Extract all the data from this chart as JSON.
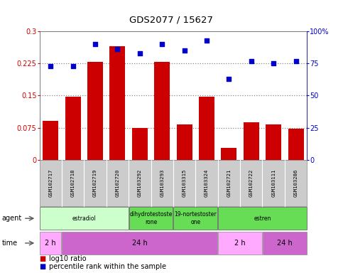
{
  "title": "GDS2077 / 15627",
  "samples": [
    "GSM102717",
    "GSM102718",
    "GSM102719",
    "GSM102720",
    "GSM103292",
    "GSM103293",
    "GSM103315",
    "GSM103324",
    "GSM102721",
    "GSM102722",
    "GSM103111",
    "GSM103286"
  ],
  "log10_ratio": [
    0.09,
    0.148,
    0.228,
    0.265,
    0.075,
    0.228,
    0.082,
    0.147,
    0.028,
    0.088,
    0.082,
    0.072
  ],
  "percentile_rank": [
    73,
    73,
    90,
    86,
    83,
    90,
    85,
    93,
    63,
    77,
    75,
    77
  ],
  "bar_color": "#cc0000",
  "dot_color": "#0000cc",
  "ylim_left": [
    0,
    0.3
  ],
  "ylim_right": [
    0,
    100
  ],
  "yticks_left": [
    0,
    0.075,
    0.15,
    0.225,
    0.3
  ],
  "ytick_labels_left": [
    "0",
    "0.075",
    "0.15",
    "0.225",
    "0.3"
  ],
  "yticks_right": [
    0,
    25,
    50,
    75,
    100
  ],
  "ytick_labels_right": [
    "0",
    "25",
    "50",
    "75",
    "100%"
  ],
  "hlines": [
    0.075,
    0.15,
    0.225
  ],
  "hline_color": "#888888",
  "agent_row": [
    {
      "label": "estradiol",
      "start": 0,
      "end": 4,
      "color": "#ccffcc"
    },
    {
      "label": "dihydrotestoste\nrone",
      "start": 4,
      "end": 6,
      "color": "#66dd55"
    },
    {
      "label": "19-nortestoster\none",
      "start": 6,
      "end": 8,
      "color": "#66dd55"
    },
    {
      "label": "estren",
      "start": 8,
      "end": 12,
      "color": "#66dd55"
    }
  ],
  "time_row": [
    {
      "label": "2 h",
      "start": 0,
      "end": 1,
      "color": "#ffaaff"
    },
    {
      "label": "24 h",
      "start": 1,
      "end": 8,
      "color": "#cc66cc"
    },
    {
      "label": "2 h",
      "start": 8,
      "end": 10,
      "color": "#ffaaff"
    },
    {
      "label": "24 h",
      "start": 10,
      "end": 12,
      "color": "#cc66cc"
    }
  ],
  "legend_red_label": "log10 ratio",
  "legend_blue_label": "percentile rank within the sample",
  "sample_bg": "#cccccc",
  "bg_color": "#ffffff"
}
